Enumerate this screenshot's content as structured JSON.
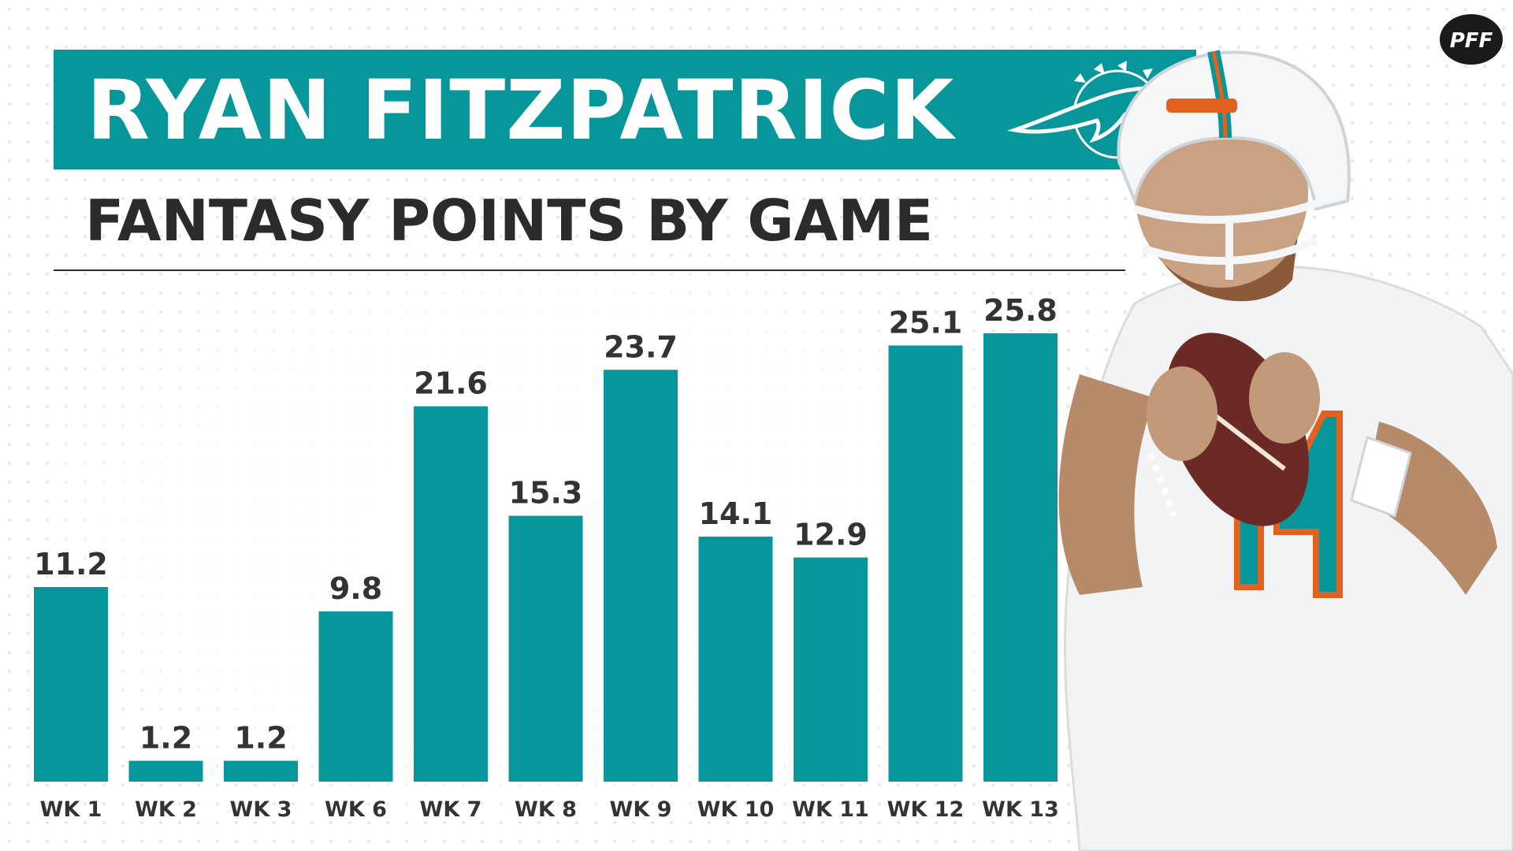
{
  "header": {
    "title": "RYAN FITZPATRICK",
    "subtitle": "FANTASY POINTS BY GAME",
    "logo_text": "PFF"
  },
  "colors": {
    "accent": "#07979a",
    "text": "#2b2b2b",
    "jersey_orange": "#e3611e"
  },
  "icons": [
    "pff-logo-icon",
    "dolphins-logo-icon",
    "player-photo"
  ],
  "chart_data": {
    "type": "bar",
    "categories": [
      "WK 1",
      "WK 2",
      "WK 3",
      "WK 6",
      "WK 7",
      "WK 8",
      "WK 9",
      "WK 10",
      "WK 11",
      "WK 12",
      "WK 13"
    ],
    "values": [
      11.2,
      1.2,
      1.2,
      9.8,
      21.6,
      15.3,
      23.7,
      14.1,
      12.9,
      25.1,
      25.8
    ],
    "value_labels": [
      "11.2",
      "1.2",
      "1.2",
      "9.8",
      "21.6",
      "15.3",
      "23.7",
      "14.1",
      "12.9",
      "25.1",
      "25.8"
    ],
    "title": "FANTASY POINTS BY GAME",
    "xlabel": "",
    "ylabel": "",
    "ylim": [
      0,
      25.8
    ],
    "grid": false,
    "bar_color": "#07979a"
  }
}
